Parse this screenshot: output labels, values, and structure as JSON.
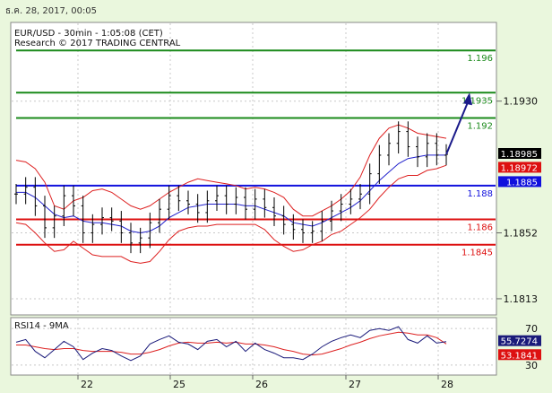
{
  "timestamp": "ธ.ค. 28, 2017, 00:05",
  "chart_data": [
    {
      "type": "line",
      "panel": "price",
      "title": "EUR/USD - 30min - 1:05:08 (CET)",
      "subtitle": "Research © 2017 TRADING CENTRAL",
      "y_ticks": [
        "1.1930",
        "1.1852",
        "1.1813"
      ],
      "ylim": [
        1.1805,
        1.1975
      ],
      "x_ticks": [
        "22",
        "25",
        "26",
        "27",
        "28"
      ],
      "grid": true,
      "levels": [
        {
          "label": "1.196",
          "value": 1.196,
          "color": "#1a8a1a"
        },
        {
          "label": "1.1935",
          "value": 1.1935,
          "color": "#1a8a1a"
        },
        {
          "label": "1.192",
          "value": 1.192,
          "color": "#1a8a1a"
        },
        {
          "label": "1.188",
          "value": 1.188,
          "color": "#1010dd"
        },
        {
          "label": "1.186",
          "value": 1.186,
          "color": "#dd1010"
        },
        {
          "label": "1.1845",
          "value": 1.1845,
          "color": "#dd1010"
        }
      ],
      "price_badges": [
        {
          "label": "1.18985",
          "value": 1.18985,
          "bg": "#000000",
          "fg": "#ffffff"
        },
        {
          "label": "1.18972",
          "value": 1.18972,
          "bg": "#dd1010",
          "fg": "#ffffff"
        },
        {
          "label": "1.1885",
          "value": 1.1885,
          "bg": "#1010dd",
          "fg": "#ffffff"
        }
      ],
      "close_series": [
        1.1875,
        1.1879,
        1.1868,
        1.1855,
        1.1862,
        1.1874,
        1.1868,
        1.1852,
        1.1857,
        1.1861,
        1.1859,
        1.1852,
        1.1846,
        1.1849,
        1.1858,
        1.1866,
        1.1874,
        1.1871,
        1.1869,
        1.1864,
        1.1871,
        1.1874,
        1.1869,
        1.1873,
        1.1866,
        1.1872,
        1.1867,
        1.1862,
        1.1857,
        1.1854,
        1.1852,
        1.1853,
        1.1859,
        1.1865,
        1.1869,
        1.1872,
        1.1875,
        1.1887,
        1.1898,
        1.1905,
        1.1912,
        1.1903,
        1.1897,
        1.1905,
        1.1898,
        1.18985
      ],
      "bollinger_upper": [
        1.1895,
        1.1894,
        1.189,
        1.1882,
        1.1868,
        1.1866,
        1.1871,
        1.1873,
        1.1877,
        1.1878,
        1.1876,
        1.1872,
        1.1868,
        1.1866,
        1.1868,
        1.1872,
        1.1876,
        1.1879,
        1.1882,
        1.1884,
        1.1883,
        1.1882,
        1.1881,
        1.188,
        1.1878,
        1.1879,
        1.1878,
        1.1876,
        1.1873,
        1.1866,
        1.1862,
        1.1862,
        1.1865,
        1.1868,
        1.1872,
        1.1877,
        1.1885,
        1.1898,
        1.1908,
        1.1914,
        1.1916,
        1.1914,
        1.1911,
        1.191,
        1.1909,
        1.1908
      ],
      "bollinger_lower": [
        1.1858,
        1.1857,
        1.1852,
        1.1846,
        1.1841,
        1.1842,
        1.1847,
        1.1843,
        1.1839,
        1.1838,
        1.1838,
        1.1838,
        1.1835,
        1.1834,
        1.1835,
        1.1841,
        1.1848,
        1.1853,
        1.1855,
        1.1856,
        1.1856,
        1.1857,
        1.1857,
        1.1857,
        1.1857,
        1.1857,
        1.1854,
        1.1848,
        1.1844,
        1.1841,
        1.1842,
        1.1845,
        1.1847,
        1.1851,
        1.1853,
        1.1857,
        1.1861,
        1.1866,
        1.1873,
        1.1879,
        1.1884,
        1.1886,
        1.1886,
        1.1889,
        1.189,
        1.1892
      ],
      "moving_average": [
        1.1876,
        1.1876,
        1.1873,
        1.1868,
        1.1863,
        1.1861,
        1.1862,
        1.1859,
        1.1858,
        1.1858,
        1.1857,
        1.1856,
        1.1853,
        1.1852,
        1.1853,
        1.1856,
        1.1861,
        1.1864,
        1.1867,
        1.1868,
        1.1869,
        1.1869,
        1.1869,
        1.1869,
        1.1868,
        1.1868,
        1.1866,
        1.1864,
        1.1862,
        1.1858,
        1.1857,
        1.1856,
        1.1858,
        1.1861,
        1.1864,
        1.1867,
        1.1871,
        1.1877,
        1.1883,
        1.1888,
        1.1893,
        1.1896,
        1.1897,
        1.1898,
        1.1898,
        1.1898
      ],
      "forecast_arrow": {
        "from": 1.18985,
        "to": 1.1935,
        "color": "#1a1a8a"
      }
    },
    {
      "type": "line",
      "panel": "rsi",
      "title": "RSI14 - 9MA",
      "y_ticks": [
        "70",
        "30"
      ],
      "ylim": [
        20,
        80
      ],
      "badges": [
        {
          "label": "55.7274",
          "value": 55.7274,
          "bg": "#1a1a7a",
          "fg": "#ffffff"
        },
        {
          "label": "53.1841",
          "value": 53.1841,
          "bg": "#dd1010",
          "fg": "#ffffff"
        }
      ],
      "rsi_series": [
        55,
        58,
        45,
        38,
        47,
        56,
        50,
        36,
        43,
        48,
        46,
        40,
        35,
        40,
        53,
        58,
        62,
        55,
        53,
        47,
        56,
        58,
        50,
        56,
        45,
        54,
        47,
        43,
        38,
        38,
        36,
        42,
        50,
        56,
        60,
        63,
        60,
        68,
        70,
        68,
        72,
        58,
        54,
        62,
        54,
        55.7274
      ],
      "rsi_ma_series": [
        52,
        52,
        50,
        48,
        47,
        48,
        48,
        46,
        45,
        45,
        45,
        44,
        42,
        42,
        44,
        47,
        51,
        54,
        55,
        54,
        54,
        55,
        54,
        55,
        53,
        53,
        52,
        50,
        47,
        45,
        42,
        41,
        42,
        45,
        48,
        52,
        55,
        59,
        62,
        64,
        66,
        65,
        63,
        63,
        60,
        53.1841
      ]
    }
  ]
}
